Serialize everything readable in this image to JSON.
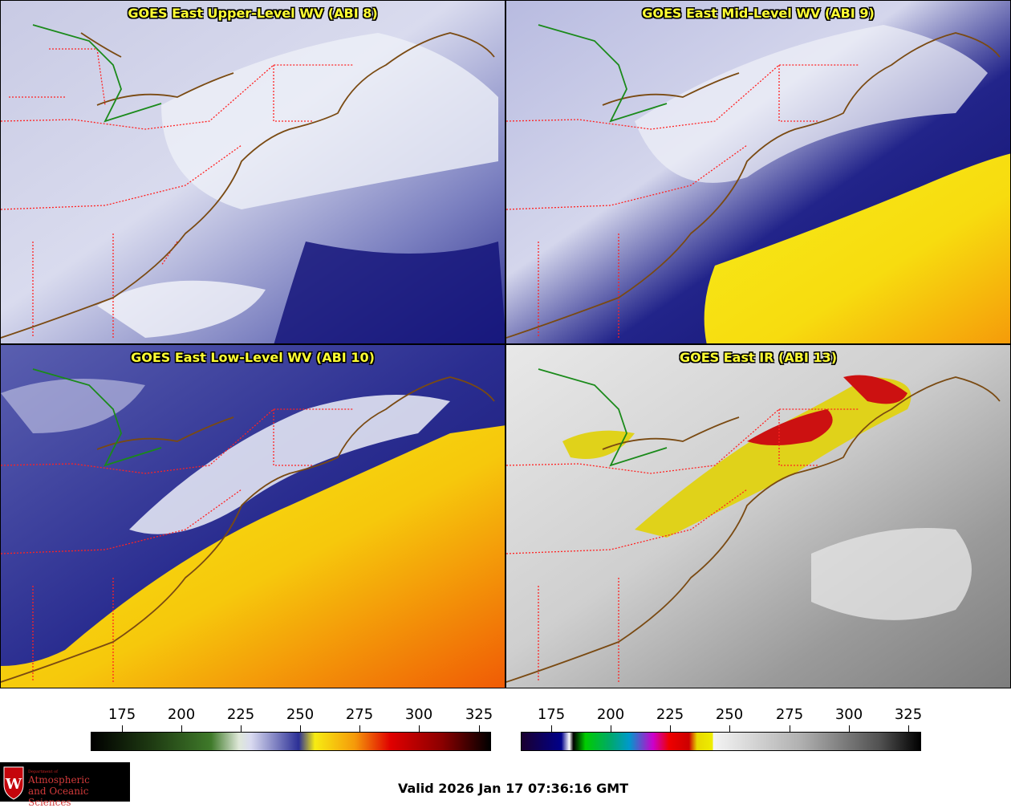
{
  "panels": [
    {
      "title": "GOES East Upper-Level WV (ABI 8)",
      "palette": "wv"
    },
    {
      "title": "GOES East Mid-Level WV (ABI 9)",
      "palette": "wv"
    },
    {
      "title": "GOES East Low-Level WV (ABI 10)",
      "palette": "wv"
    },
    {
      "title": "GOES East IR (ABI 13)",
      "palette": "ir"
    }
  ],
  "colorbar_wv": {
    "ticks": [
      "175",
      "200",
      "225",
      "250",
      "275",
      "300",
      "325"
    ]
  },
  "colorbar_ir": {
    "ticks": [
      "175",
      "200",
      "225",
      "250",
      "275",
      "300",
      "325"
    ]
  },
  "logo": {
    "line1": "Department of",
    "line2": "Atmospheric",
    "line3": "and Oceanic Sciences"
  },
  "valid_time": "Valid 2026 Jan 17 07:36:16 GMT",
  "colors": {
    "title_text": "#ffff33",
    "state_lines": "#ff2222",
    "coast": "#7a4a12",
    "border": "#1a8a1a"
  }
}
